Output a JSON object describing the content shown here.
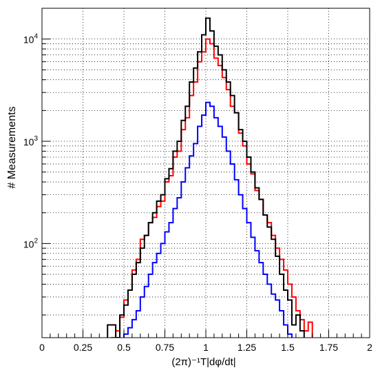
{
  "chart_data": {
    "type": "line",
    "style": "step-histogram",
    "title": "",
    "xlabel": "(2π)⁻¹T|dφ/dt|",
    "ylabel": "# Measurements",
    "xlim": [
      0,
      2
    ],
    "ylim": [
      12,
      20000
    ],
    "yscale": "log",
    "grid": true,
    "grid_style": "dotted",
    "legend": "none",
    "x_ticks": [
      {
        "value": 0,
        "label": "0"
      },
      {
        "value": 0.25,
        "label": "0.25"
      },
      {
        "value": 0.5,
        "label": "0.5"
      },
      {
        "value": 0.75,
        "label": "0.75"
      },
      {
        "value": 1.0,
        "label": "1"
      },
      {
        "value": 1.25,
        "label": "1.25"
      },
      {
        "value": 1.5,
        "label": "1.5"
      },
      {
        "value": 1.75,
        "label": "1.75"
      },
      {
        "value": 2.0,
        "label": "2"
      }
    ],
    "y_ticks": [
      {
        "value": 100,
        "base": "10",
        "exp": "2"
      },
      {
        "value": 1000,
        "base": "10",
        "exp": "3"
      },
      {
        "value": 10000,
        "base": "10",
        "exp": "4"
      }
    ],
    "bin_width": 0.025,
    "series": [
      {
        "color": "#ff0000",
        "x": [
          0.425,
          0.45,
          0.475,
          0.5,
          0.525,
          0.55,
          0.575,
          0.6,
          0.625,
          0.65,
          0.675,
          0.7,
          0.725,
          0.75,
          0.775,
          0.8,
          0.825,
          0.85,
          0.875,
          0.9,
          0.925,
          0.95,
          0.975,
          1.0,
          1.025,
          1.05,
          1.075,
          1.1,
          1.125,
          1.15,
          1.175,
          1.2,
          1.225,
          1.25,
          1.275,
          1.3,
          1.325,
          1.35,
          1.375,
          1.4,
          1.425,
          1.45,
          1.475,
          1.5,
          1.525,
          1.55,
          1.575,
          1.6,
          1.625
        ],
        "values": [
          12,
          14,
          19,
          28,
          35,
          55,
          70,
          110,
          120,
          160,
          180,
          230,
          260,
          400,
          460,
          700,
          800,
          1300,
          1700,
          2800,
          3800,
          6000,
          7500,
          10000,
          9000,
          6500,
          5500,
          4200,
          3200,
          2200,
          1900,
          1200,
          900,
          600,
          480,
          330,
          270,
          190,
          160,
          120,
          90,
          70,
          55,
          40,
          30,
          22,
          18,
          14,
          17
        ]
      },
      {
        "color": "#000000",
        "x": [
          0.4,
          0.425,
          0.45,
          0.475,
          0.5,
          0.525,
          0.55,
          0.575,
          0.6,
          0.625,
          0.65,
          0.675,
          0.7,
          0.725,
          0.75,
          0.775,
          0.8,
          0.825,
          0.85,
          0.875,
          0.9,
          0.925,
          0.95,
          0.975,
          1.0,
          1.025,
          1.05,
          1.075,
          1.1,
          1.125,
          1.15,
          1.175,
          1.2,
          1.225,
          1.25,
          1.275,
          1.3,
          1.325,
          1.35,
          1.375,
          1.4,
          1.425,
          1.45,
          1.475,
          1.5,
          1.525,
          1.55,
          1.575
        ],
        "values": [
          16,
          16,
          12,
          20,
          25,
          35,
          50,
          65,
          90,
          120,
          160,
          200,
          260,
          300,
          430,
          540,
          800,
          1000,
          1600,
          2200,
          3800,
          5200,
          7500,
          11000,
          16000,
          12000,
          8500,
          7000,
          5000,
          3800,
          2800,
          1900,
          1300,
          1000,
          700,
          500,
          350,
          270,
          190,
          145,
          110,
          75,
          50,
          35,
          28,
          16,
          20,
          14
        ]
      },
      {
        "color": "#0000ff",
        "x": [
          0.5,
          0.525,
          0.55,
          0.575,
          0.6,
          0.625,
          0.65,
          0.675,
          0.7,
          0.725,
          0.75,
          0.775,
          0.8,
          0.825,
          0.85,
          0.875,
          0.9,
          0.925,
          0.95,
          0.975,
          1.0,
          1.025,
          1.05,
          1.075,
          1.1,
          1.125,
          1.15,
          1.175,
          1.2,
          1.225,
          1.25,
          1.275,
          1.3,
          1.325,
          1.35,
          1.375,
          1.4,
          1.425,
          1.45,
          1.475,
          1.5
        ],
        "values": [
          13,
          15,
          18,
          22,
          30,
          38,
          50,
          65,
          80,
          100,
          130,
          160,
          220,
          280,
          400,
          550,
          720,
          950,
          1400,
          1800,
          2400,
          2200,
          1700,
          1400,
          1100,
          800,
          600,
          420,
          300,
          220,
          160,
          115,
          85,
          65,
          50,
          40,
          32,
          28,
          22,
          16,
          13
        ]
      }
    ]
  }
}
